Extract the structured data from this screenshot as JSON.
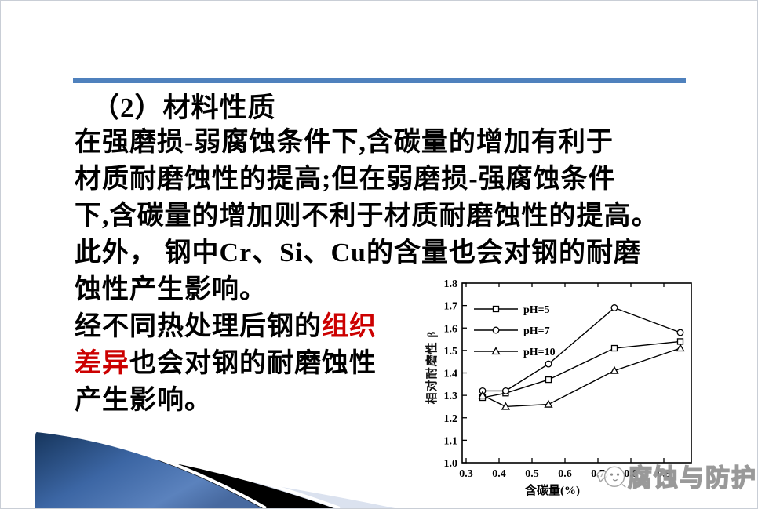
{
  "slide": {
    "title": "（2）材料性质",
    "body": {
      "line1": "在强磨损-弱腐蚀条件下,含碳量的增加有利于",
      "line2": "材质耐磨蚀性的提高;但在弱磨损-强腐蚀条件",
      "line3": "下,含碳量的增加则不利于材质耐磨蚀性的提高。",
      "line4": "此外， 钢中Cr、Si、Cu的含量也会对钢的耐磨",
      "line5": "蚀性产生影响。",
      "line6_black": "经不同热处理后钢的",
      "line6_red": "组织",
      "line7_red": "差异",
      "line7_black": "也会对钢的耐磨蚀性",
      "line8": "产生影响。"
    }
  },
  "chart_data": {
    "type": "line",
    "title": "",
    "xlabel": "含碳量(%)",
    "ylabel": "相对耐磨性 β",
    "xlim": [
      0.3,
      0.983
    ],
    "ylim": [
      1.0,
      1.8
    ],
    "xticks": [
      "0.3",
      "0.4",
      "0.5",
      "0.6",
      "0.7",
      "0.8",
      "0.9"
    ],
    "yticks": [
      "1.0",
      "1.1",
      "1.2",
      "1.3",
      "1.4",
      "1.5",
      "1.6",
      "1.7",
      "1.8"
    ],
    "grid": false,
    "legend_position": "upper-left",
    "series": [
      {
        "name": "pH=5",
        "marker": "square",
        "x": [
          0.35,
          0.42,
          0.55,
          0.75,
          0.95
        ],
        "y": [
          1.29,
          1.31,
          1.37,
          1.51,
          1.54
        ]
      },
      {
        "name": "pH=7",
        "marker": "circle",
        "x": [
          0.35,
          0.42,
          0.55,
          0.75,
          0.95
        ],
        "y": [
          1.32,
          1.32,
          1.44,
          1.69,
          1.58
        ]
      },
      {
        "name": "pH=10",
        "marker": "triangle",
        "x": [
          0.35,
          0.42,
          0.55,
          0.75,
          0.95
        ],
        "y": [
          1.3,
          1.25,
          1.26,
          1.41,
          1.51
        ]
      }
    ]
  },
  "watermark": {
    "text": "腐蚀与防护"
  },
  "colors": {
    "accent_blue": "#4f81bd",
    "highlight_red": "#cc0000",
    "ribbon_blue_dark": "#16355c",
    "ribbon_blue_light": "#5b82bd",
    "ribbon_black": "#000000",
    "ribbon_gray": "#dbe2ef",
    "line_color": "#000000"
  }
}
